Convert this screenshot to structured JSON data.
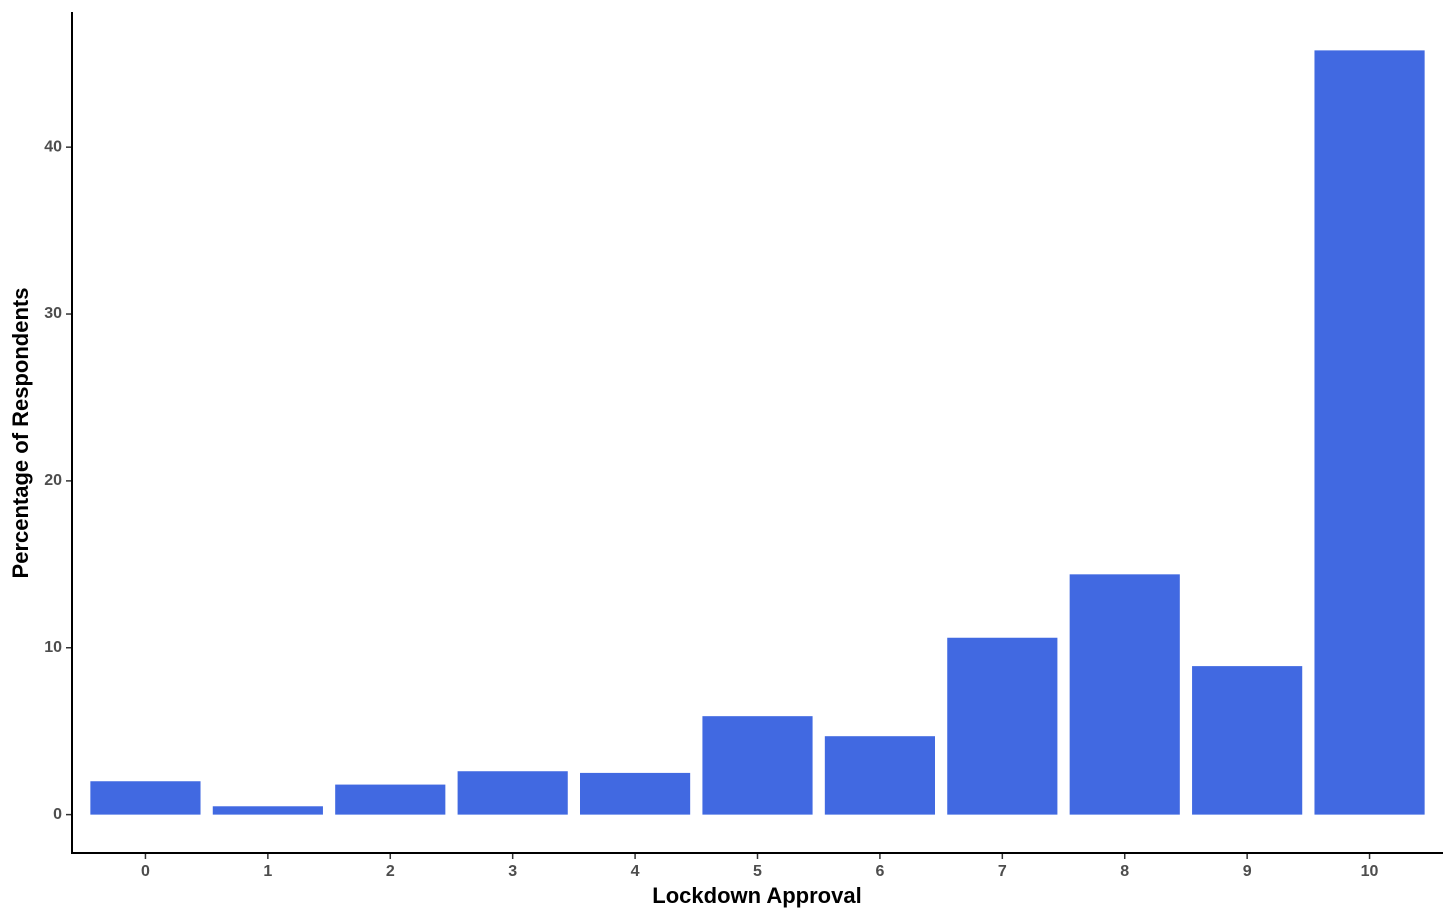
{
  "chart_data": {
    "type": "bar",
    "x_label": "Lockdown Approval",
    "y_label": "Percentage of Respondents",
    "categories": [
      "0",
      "1",
      "2",
      "3",
      "4",
      "5",
      "6",
      "7",
      "8",
      "9",
      "10"
    ],
    "values": [
      2.0,
      0.5,
      1.8,
      2.6,
      2.5,
      5.9,
      4.7,
      10.6,
      14.4,
      8.9,
      45.8
    ],
    "color": "#4169e1",
    "ylim": [
      -2.3,
      48.1
    ],
    "yticks": [
      0,
      10,
      20,
      30,
      40
    ],
    "grid": false
  }
}
